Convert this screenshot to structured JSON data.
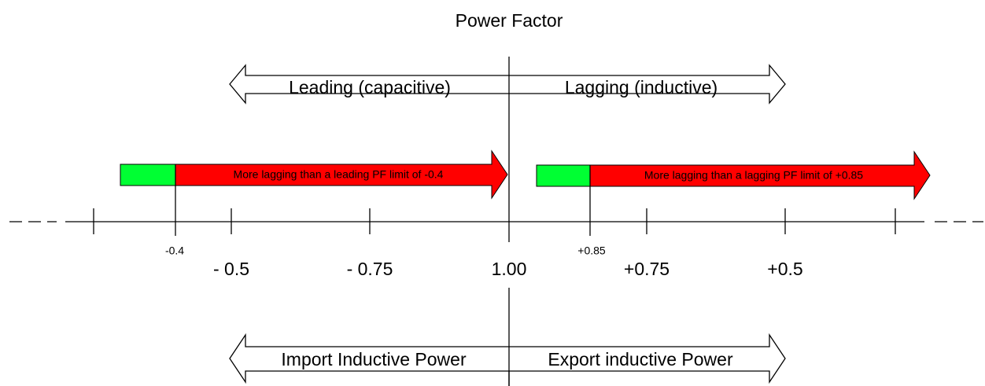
{
  "title": "Power Factor",
  "top_arrow": {
    "left": "Leading (capacitive)",
    "right": "Lagging (inductive)"
  },
  "limits": [
    {
      "label": "-0.4",
      "text": "More lagging than a leading PF limit of -0.4"
    },
    {
      "label": "+0.85",
      "text": "More lagging than a lagging PF limit of +0.85"
    }
  ],
  "axis_labels": [
    "- 0.5",
    "- 0.75",
    "1.00",
    "+0.75",
    "+0.5"
  ],
  "bottom_arrow": {
    "left": "Import Inductive Power",
    "right": "Export inductive Power"
  }
}
